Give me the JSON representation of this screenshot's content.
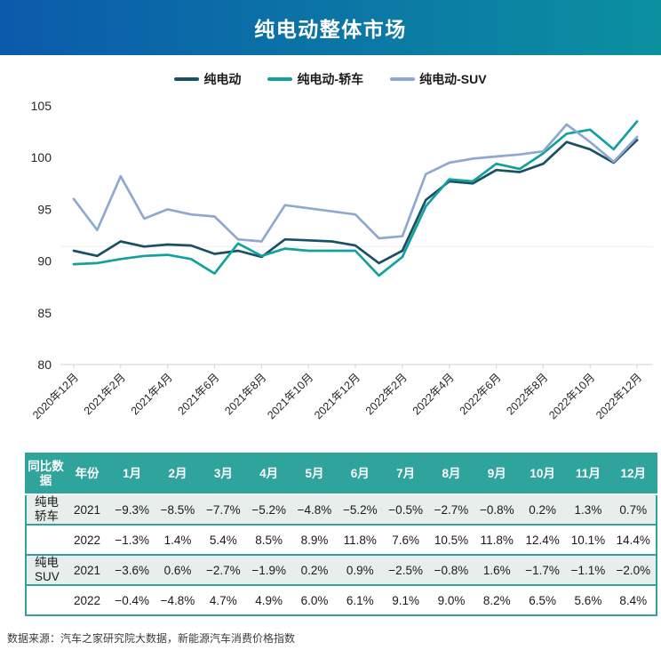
{
  "header": {
    "title": "纯电动整体市场"
  },
  "colors": {
    "title_gradient_left": "#0b5aab",
    "title_gradient_right": "#0b90a0",
    "table_header_bg": "#2ea49d",
    "table_border": "#2ea49d",
    "table_stripe_bg": "#e7eeec",
    "axis_line_color": "#d9d9d9",
    "text_color": "#262626"
  },
  "chart_data": {
    "type": "line",
    "title": "纯电动整体市场",
    "x": [
      "2020年12月",
      "2021年1月",
      "2021年2月",
      "2021年3月",
      "2021年4月",
      "2021年5月",
      "2021年6月",
      "2021年7月",
      "2021年8月",
      "2021年9月",
      "2021年10月",
      "2021年11月",
      "2021年12月",
      "2022年1月",
      "2022年2月",
      "2022年3月",
      "2022年4月",
      "2022年5月",
      "2022年6月",
      "2022年7月",
      "2022年8月",
      "2022年9月",
      "2022年10月",
      "2022年11月",
      "2022年12月"
    ],
    "x_tick_labels": [
      "2020年12月",
      "2021年2月",
      "2021年4月",
      "2021年6月",
      "2021年8月",
      "2021年10月",
      "2021年12月",
      "2022年2月",
      "2022年4月",
      "2022年6月",
      "2022年8月",
      "2022年10月",
      "2022年12月"
    ],
    "ylim": [
      80,
      105
    ],
    "yticks": [
      80,
      85,
      90,
      95,
      100,
      105
    ],
    "grid": false,
    "legend_position": "top",
    "faint_reference_line_y": 91.4,
    "series": [
      {
        "name": "纯电动",
        "color": "#1b4f66",
        "values": [
          91.0,
          90.5,
          91.9,
          91.4,
          91.6,
          91.5,
          90.7,
          91.0,
          90.4,
          92.1,
          92.0,
          91.9,
          91.5,
          89.8,
          91.0,
          95.9,
          97.7,
          97.5,
          98.8,
          98.6,
          99.4,
          101.5,
          100.8,
          99.5,
          101.7
        ]
      },
      {
        "name": "纯电动-轿车",
        "color": "#12a19e",
        "values": [
          89.7,
          89.8,
          90.2,
          90.5,
          90.6,
          90.2,
          88.8,
          91.7,
          90.5,
          91.2,
          91.0,
          91.0,
          91.0,
          88.6,
          90.4,
          95.3,
          97.9,
          97.7,
          99.4,
          98.9,
          100.4,
          102.3,
          102.7,
          100.8,
          103.5
        ]
      },
      {
        "name": "纯电动-SUV",
        "color": "#8ea9cf",
        "values": [
          96.0,
          93.0,
          98.2,
          94.1,
          95.0,
          94.5,
          94.3,
          92.1,
          91.9,
          95.4,
          95.1,
          94.8,
          94.5,
          92.2,
          92.4,
          98.4,
          99.5,
          99.9,
          100.1,
          100.3,
          100.6,
          103.2,
          101.5,
          99.6,
          102.0
        ]
      }
    ]
  },
  "table": {
    "header": [
      "同比数据",
      "年份",
      "1月",
      "2月",
      "3月",
      "4月",
      "5月",
      "6月",
      "7月",
      "8月",
      "9月",
      "10月",
      "11月",
      "12月"
    ],
    "rows": [
      {
        "label": "纯电轿车",
        "year": "2021",
        "values": [
          "−9.3%",
          "−8.5%",
          "−7.7%",
          "−5.2%",
          "−4.8%",
          "−5.2%",
          "−0.5%",
          "−2.7%",
          "−0.8%",
          "0.2%",
          "1.3%",
          "0.7%"
        ]
      },
      {
        "label": "",
        "year": "2022",
        "values": [
          "−1.3%",
          "1.4%",
          "5.4%",
          "8.5%",
          "8.9%",
          "11.8%",
          "7.6%",
          "10.5%",
          "11.8%",
          "12.4%",
          "10.1%",
          "14.4%"
        ]
      },
      {
        "label": "纯电SUV",
        "year": "2021",
        "values": [
          "−3.6%",
          "0.6%",
          "−2.7%",
          "−1.9%",
          "0.2%",
          "0.9%",
          "−2.5%",
          "−0.8%",
          "1.6%",
          "−1.7%",
          "−1.1%",
          "−2.0%"
        ]
      },
      {
        "label": "",
        "year": "2022",
        "values": [
          "−0.4%",
          "−4.8%",
          "4.7%",
          "4.9%",
          "6.0%",
          "6.1%",
          "9.1%",
          "9.0%",
          "8.2%",
          "6.5%",
          "5.6%",
          "8.4%"
        ]
      }
    ]
  },
  "footer": {
    "source": "数据来源：汽车之家研究院大数据，新能源汽车消费价格指数"
  }
}
